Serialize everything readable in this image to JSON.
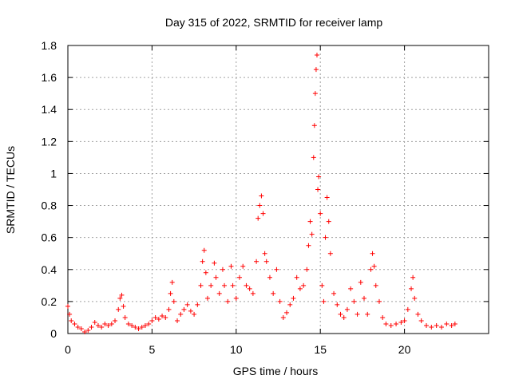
{
  "chart_data": {
    "type": "scatter",
    "title": "Day 315 of 2022, SRMTID for receiver lamp",
    "xlabel": "GPS time / hours",
    "ylabel": "SRMTID / TECUs",
    "xlim": [
      0,
      25
    ],
    "ylim": [
      0,
      1.8
    ],
    "x_ticks": [
      0,
      5,
      10,
      15,
      20
    ],
    "x_tick_labels": [
      "0",
      "5",
      "10",
      "15",
      "20"
    ],
    "y_ticks": [
      0,
      0.2,
      0.4,
      0.6,
      0.8,
      1.0,
      1.2,
      1.4,
      1.6,
      1.8
    ],
    "y_tick_labels": [
      "0",
      "0.2",
      "0.4",
      "0.6",
      "0.8",
      "1",
      "1.2",
      "1.4",
      "1.6",
      "1.8"
    ],
    "grid": true,
    "marker": "plus",
    "marker_color": "#ff0000",
    "series": [
      {
        "name": "SRMTID",
        "points": [
          [
            0.0,
            0.17
          ],
          [
            0.1,
            0.12
          ],
          [
            0.2,
            0.08
          ],
          [
            0.4,
            0.06
          ],
          [
            0.6,
            0.04
          ],
          [
            0.8,
            0.03
          ],
          [
            1.0,
            0.01
          ],
          [
            1.2,
            0.02
          ],
          [
            1.4,
            0.04
          ],
          [
            1.6,
            0.07
          ],
          [
            1.8,
            0.05
          ],
          [
            2.0,
            0.04
          ],
          [
            2.2,
            0.06
          ],
          [
            2.4,
            0.05
          ],
          [
            2.6,
            0.06
          ],
          [
            2.8,
            0.08
          ],
          [
            3.0,
            0.15
          ],
          [
            3.1,
            0.22
          ],
          [
            3.2,
            0.24
          ],
          [
            3.3,
            0.17
          ],
          [
            3.4,
            0.1
          ],
          [
            3.6,
            0.06
          ],
          [
            3.8,
            0.05
          ],
          [
            4.0,
            0.04
          ],
          [
            4.2,
            0.03
          ],
          [
            4.4,
            0.04
          ],
          [
            4.6,
            0.05
          ],
          [
            4.8,
            0.06
          ],
          [
            5.0,
            0.08
          ],
          [
            5.2,
            0.1
          ],
          [
            5.4,
            0.09
          ],
          [
            5.6,
            0.11
          ],
          [
            5.8,
            0.1
          ],
          [
            6.0,
            0.15
          ],
          [
            6.1,
            0.25
          ],
          [
            6.2,
            0.32
          ],
          [
            6.3,
            0.2
          ],
          [
            6.5,
            0.08
          ],
          [
            6.7,
            0.12
          ],
          [
            6.9,
            0.15
          ],
          [
            7.1,
            0.18
          ],
          [
            7.3,
            0.14
          ],
          [
            7.5,
            0.12
          ],
          [
            7.7,
            0.18
          ],
          [
            7.9,
            0.3
          ],
          [
            8.0,
            0.45
          ],
          [
            8.1,
            0.52
          ],
          [
            8.2,
            0.38
          ],
          [
            8.3,
            0.22
          ],
          [
            8.5,
            0.3
          ],
          [
            8.7,
            0.44
          ],
          [
            8.8,
            0.35
          ],
          [
            9.0,
            0.25
          ],
          [
            9.2,
            0.4
          ],
          [
            9.3,
            0.3
          ],
          [
            9.5,
            0.2
          ],
          [
            9.7,
            0.42
          ],
          [
            9.8,
            0.3
          ],
          [
            10.0,
            0.22
          ],
          [
            10.2,
            0.35
          ],
          [
            10.4,
            0.42
          ],
          [
            10.6,
            0.3
          ],
          [
            10.8,
            0.28
          ],
          [
            11.0,
            0.25
          ],
          [
            11.2,
            0.45
          ],
          [
            11.3,
            0.72
          ],
          [
            11.4,
            0.8
          ],
          [
            11.5,
            0.86
          ],
          [
            11.6,
            0.75
          ],
          [
            11.7,
            0.5
          ],
          [
            11.8,
            0.45
          ],
          [
            12.0,
            0.35
          ],
          [
            12.2,
            0.25
          ],
          [
            12.4,
            0.4
          ],
          [
            12.6,
            0.2
          ],
          [
            12.8,
            0.1
          ],
          [
            13.0,
            0.13
          ],
          [
            13.2,
            0.18
          ],
          [
            13.4,
            0.22
          ],
          [
            13.6,
            0.35
          ],
          [
            13.8,
            0.28
          ],
          [
            14.0,
            0.3
          ],
          [
            14.2,
            0.4
          ],
          [
            14.3,
            0.55
          ],
          [
            14.4,
            0.7
          ],
          [
            14.5,
            0.62
          ],
          [
            14.6,
            1.1
          ],
          [
            14.65,
            1.3
          ],
          [
            14.7,
            1.5
          ],
          [
            14.75,
            1.65
          ],
          [
            14.8,
            1.74
          ],
          [
            14.85,
            0.9
          ],
          [
            14.9,
            0.98
          ],
          [
            15.0,
            0.75
          ],
          [
            15.1,
            0.3
          ],
          [
            15.2,
            0.2
          ],
          [
            15.3,
            0.6
          ],
          [
            15.4,
            0.85
          ],
          [
            15.5,
            0.7
          ],
          [
            15.6,
            0.5
          ],
          [
            15.8,
            0.25
          ],
          [
            16.0,
            0.18
          ],
          [
            16.2,
            0.12
          ],
          [
            16.4,
            0.1
          ],
          [
            16.6,
            0.15
          ],
          [
            16.8,
            0.28
          ],
          [
            17.0,
            0.2
          ],
          [
            17.2,
            0.12
          ],
          [
            17.4,
            0.32
          ],
          [
            17.6,
            0.22
          ],
          [
            17.8,
            0.12
          ],
          [
            18.0,
            0.4
          ],
          [
            18.1,
            0.5
          ],
          [
            18.2,
            0.42
          ],
          [
            18.3,
            0.3
          ],
          [
            18.5,
            0.2
          ],
          [
            18.7,
            0.1
          ],
          [
            18.9,
            0.06
          ],
          [
            19.2,
            0.05
          ],
          [
            19.5,
            0.06
          ],
          [
            19.8,
            0.07
          ],
          [
            20.0,
            0.08
          ],
          [
            20.2,
            0.15
          ],
          [
            20.4,
            0.28
          ],
          [
            20.5,
            0.35
          ],
          [
            20.6,
            0.22
          ],
          [
            20.8,
            0.12
          ],
          [
            21.0,
            0.08
          ],
          [
            21.3,
            0.05
          ],
          [
            21.6,
            0.04
          ],
          [
            21.9,
            0.05
          ],
          [
            22.2,
            0.04
          ],
          [
            22.5,
            0.06
          ],
          [
            22.8,
            0.05
          ],
          [
            23.0,
            0.06
          ]
        ]
      }
    ]
  }
}
